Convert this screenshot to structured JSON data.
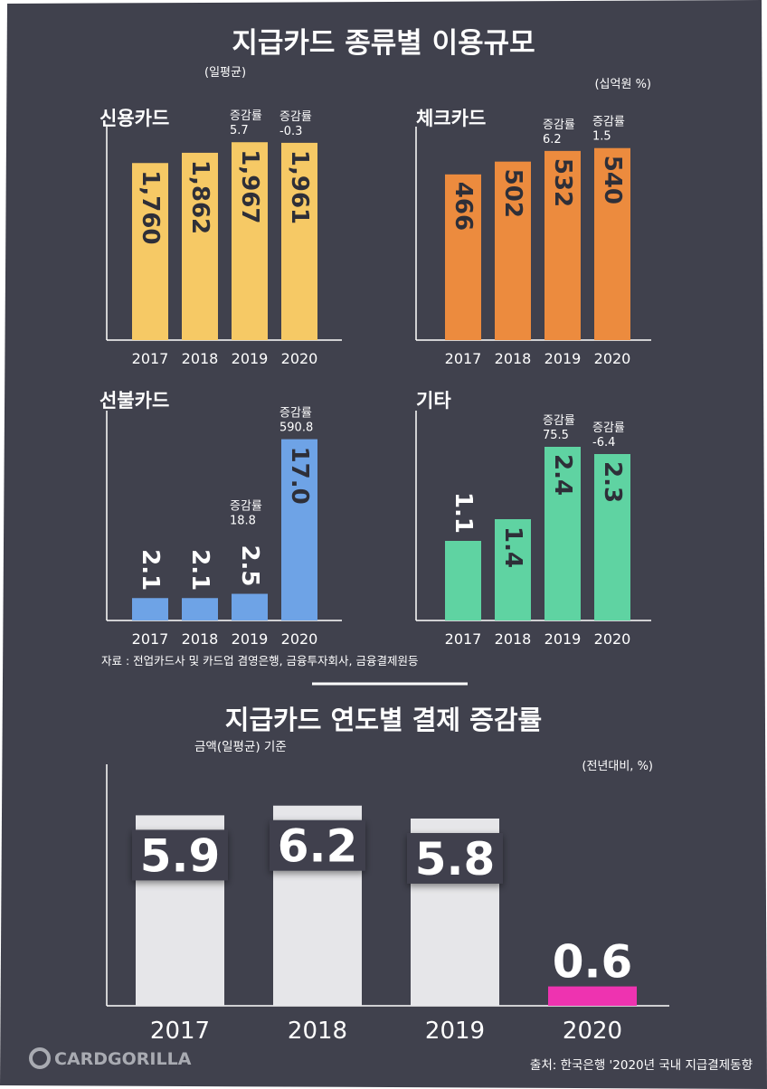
{
  "title": "지급카드 종류별 이용규모",
  "subtitle": "(일평균)",
  "unit": "(십억원 %)",
  "source": "자료 : 전업카드사 및 카드업 겸영은행, 금융투자회사, 금융결제원등",
  "growth_label": "증감률",
  "colors": {
    "bg": "#40414d",
    "credit": "#f6c965",
    "check": "#ec8b3e",
    "prepaid": "#6ea3e6",
    "other": "#5fd3a2",
    "annual": "#e6e6e9",
    "annual_hi": "#ee33b0"
  },
  "bottom": {
    "title": "지급카드 연도별 결제 증감률",
    "subtitle": "금액(일평균) 기준",
    "unit": "(전년대비, %)"
  },
  "footer": {
    "logo": "CARDGORILLA",
    "source": "출처: 한국은행 '2020년 국내 지급결제동향"
  },
  "chart_data": [
    {
      "type": "bar",
      "title": "신용카드",
      "categories": [
        "2017",
        "2018",
        "2019",
        "2020"
      ],
      "values": [
        1760,
        1862,
        1967,
        1961
      ],
      "value_labels": [
        "1,760",
        "1,862",
        "1,967",
        "1,961"
      ],
      "growth": [
        "",
        "",
        "5.7",
        "-0.3"
      ],
      "color": "#f6c965",
      "ylim": [
        0,
        2050
      ]
    },
    {
      "type": "bar",
      "title": "체크카드",
      "categories": [
        "2017",
        "2018",
        "2019",
        "2020"
      ],
      "values": [
        466,
        502,
        532,
        540
      ],
      "value_labels": [
        "466",
        "502",
        "532",
        "540"
      ],
      "growth": [
        "",
        "",
        "6.2",
        "1.5"
      ],
      "color": "#ec8b3e",
      "ylim": [
        0,
        580
      ]
    },
    {
      "type": "bar",
      "title": "선불카드",
      "categories": [
        "2017",
        "2018",
        "2019",
        "2020"
      ],
      "values": [
        2.1,
        2.1,
        2.5,
        17.0
      ],
      "value_labels": [
        "2.1",
        "2.1",
        "2.5",
        "17.0"
      ],
      "growth": [
        "",
        "",
        "18.8",
        "590.8"
      ],
      "color": "#6ea3e6",
      "ylim": [
        0,
        19
      ]
    },
    {
      "type": "bar",
      "title": "기타",
      "categories": [
        "2017",
        "2018",
        "2019",
        "2020"
      ],
      "values": [
        1.1,
        1.4,
        2.4,
        2.3
      ],
      "value_labels": [
        "1.1",
        "1.4",
        "2.4",
        "2.3"
      ],
      "growth": [
        "",
        "",
        "75.5",
        "-6.4"
      ],
      "color": "#5fd3a2",
      "ylim": [
        0,
        2.8
      ]
    },
    {
      "type": "bar",
      "title": "지급카드 연도별 결제 증감률",
      "categories": [
        "2017",
        "2018",
        "2019",
        "2020"
      ],
      "values": [
        5.9,
        6.2,
        5.8,
        0.6
      ],
      "value_labels": [
        "5.9",
        "6.2",
        "5.8",
        "0.6"
      ],
      "ylabel": "전년대비, %",
      "ylim": [
        0,
        6.5
      ]
    }
  ]
}
